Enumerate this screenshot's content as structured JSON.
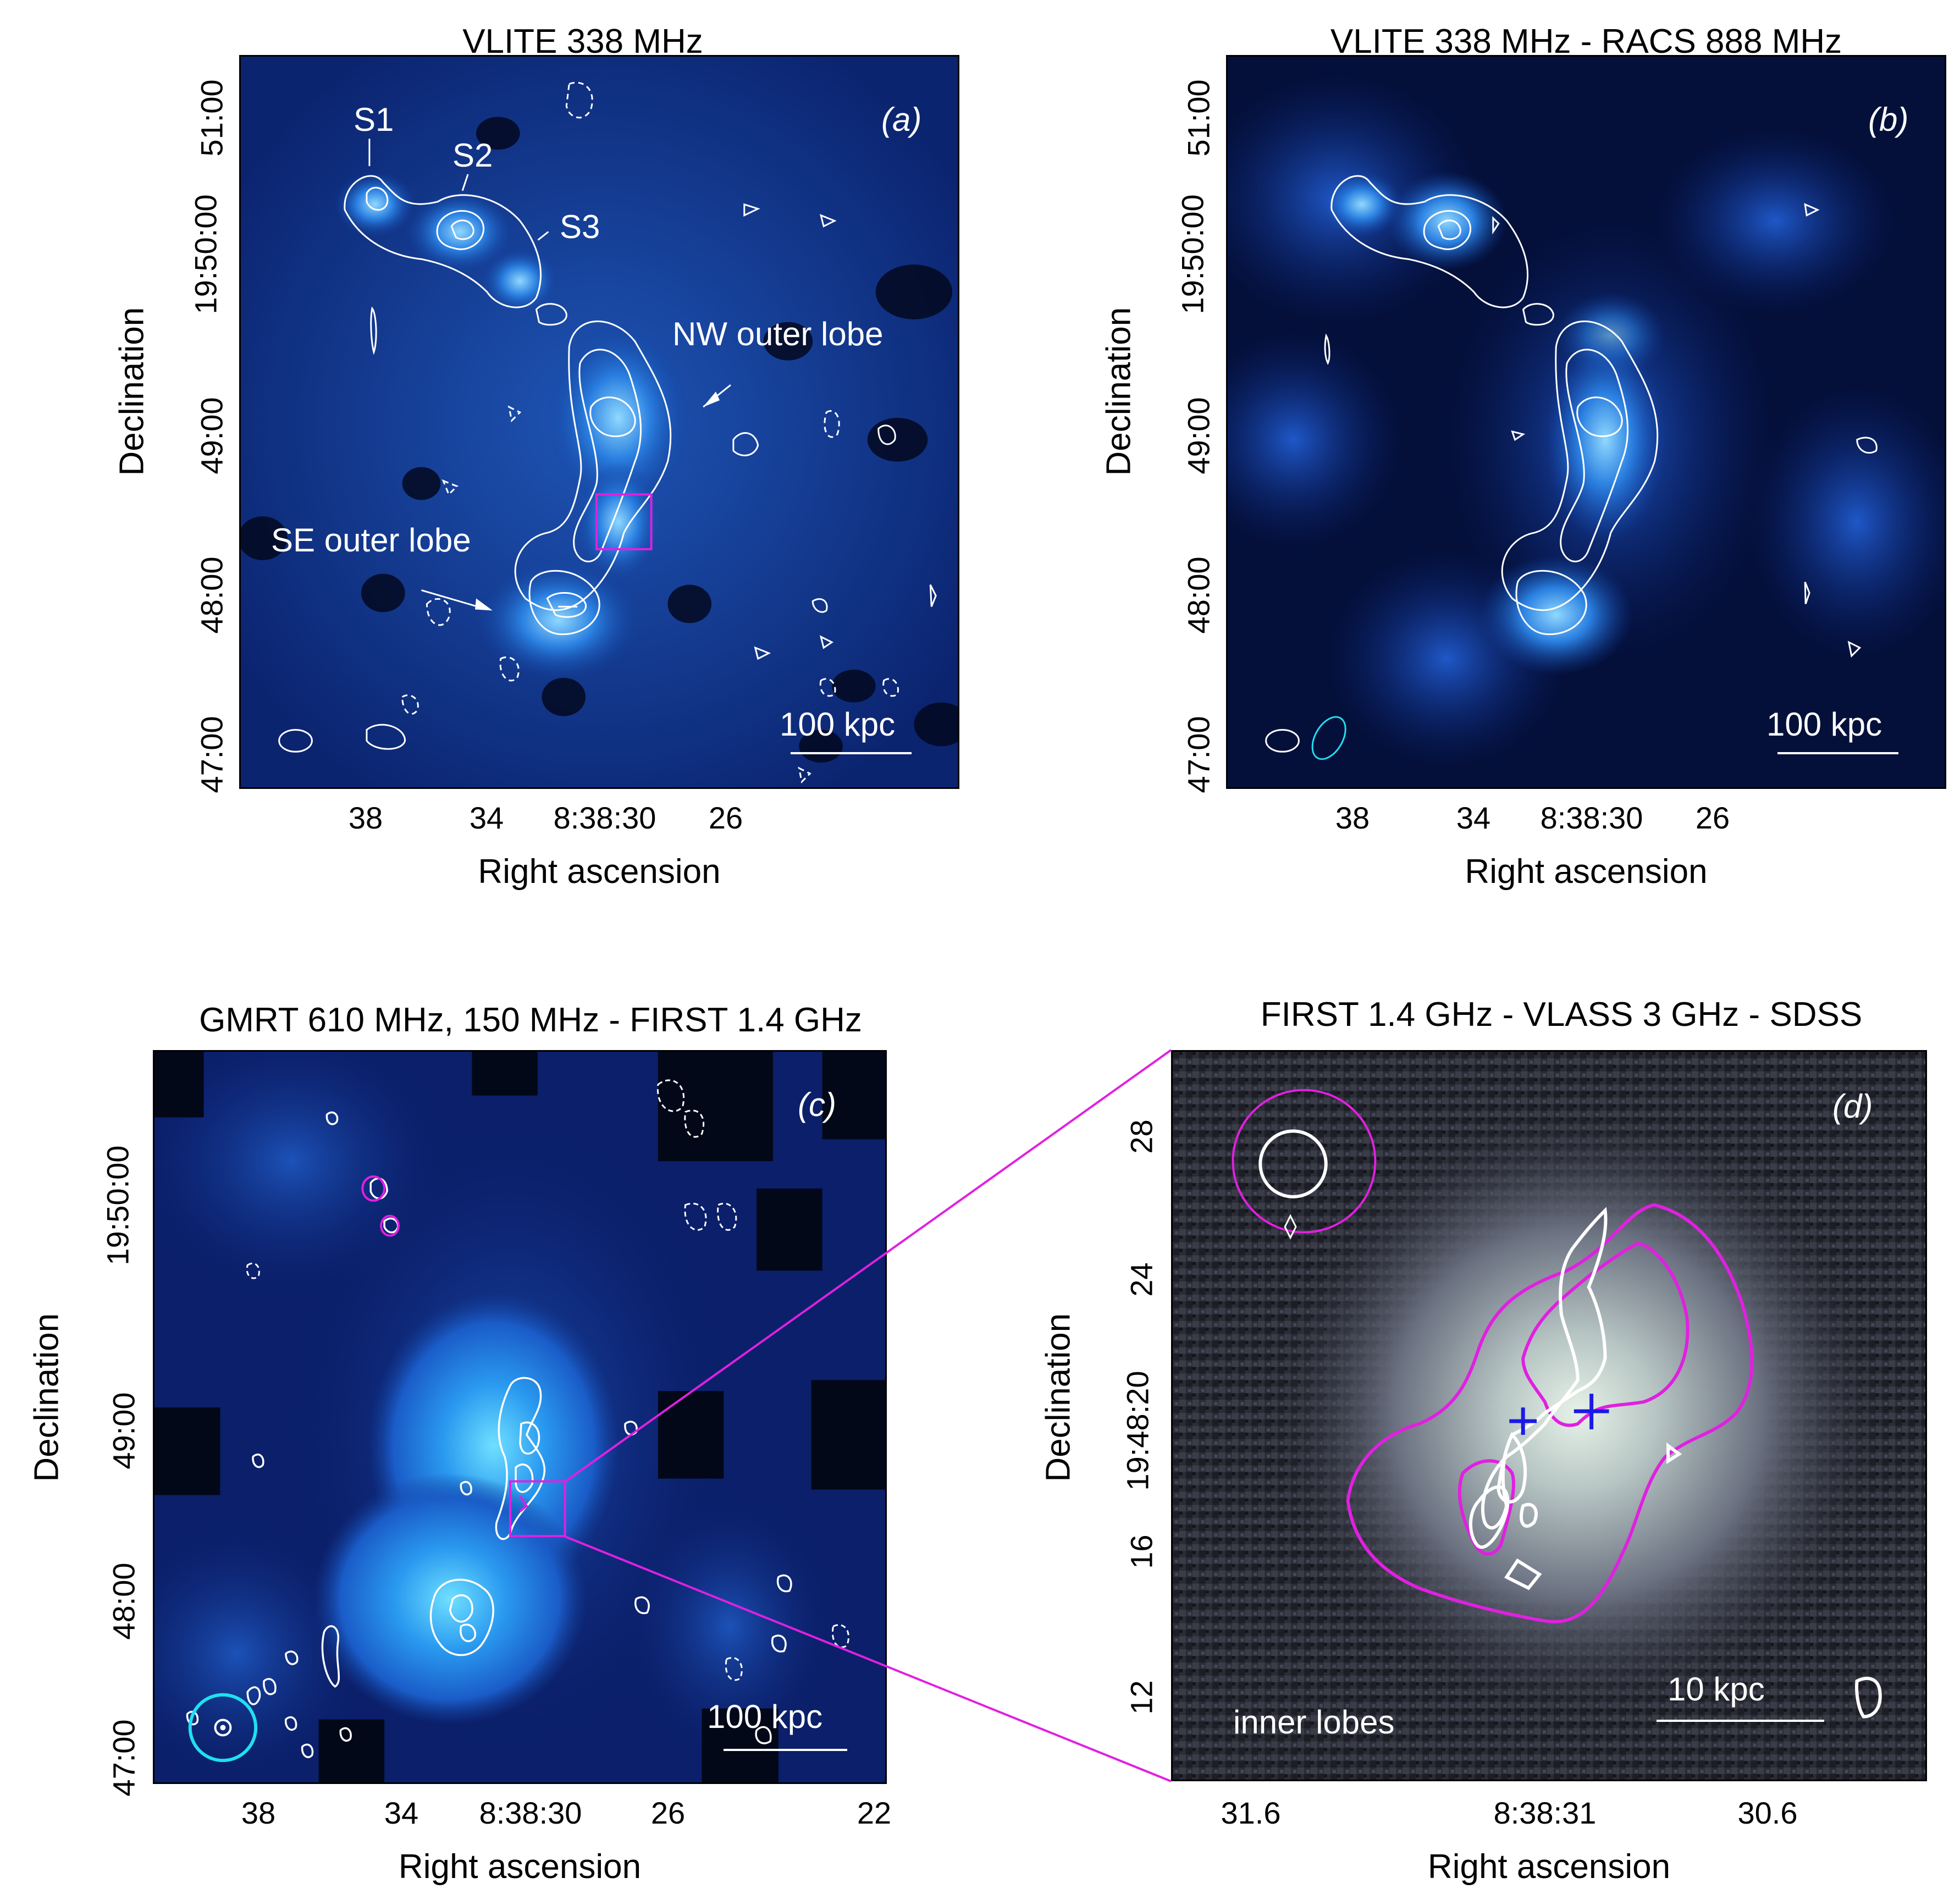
{
  "panels": {
    "a": {
      "title": "VLITE 338 MHz",
      "letter": "(a)",
      "xlabel": "Right ascension",
      "ylabel": "Declination",
      "xticks": [
        "38",
        "34",
        "8:38:30",
        "26"
      ],
      "yticks": [
        "51:00",
        "19:50:00",
        "49:00",
        "48:00",
        "47:00"
      ],
      "scale": "100 kpc",
      "sources": [
        "S1",
        "S2",
        "S3"
      ],
      "lobes": [
        "NW outer lobe",
        "SE outer lobe"
      ]
    },
    "b": {
      "title": "VLITE 338 MHz - RACS 888 MHz",
      "letter": "(b)",
      "xlabel": "Right ascension",
      "ylabel": "Declination",
      "xticks": [
        "38",
        "34",
        "8:38:30",
        "26"
      ],
      "yticks": [
        "51:00",
        "19:50:00",
        "49:00",
        "48:00",
        "47:00"
      ],
      "scale": "100 kpc"
    },
    "c": {
      "title": "GMRT 610 MHz, 150 MHz - FIRST 1.4 GHz",
      "letter": "(c)",
      "xlabel": "Right ascension",
      "ylabel": "Declination",
      "xticks": [
        "38",
        "34",
        "8:38:30",
        "26",
        "22"
      ],
      "yticks": [
        "19:50:00",
        "49:00",
        "48:00",
        "47:00"
      ],
      "scale": "100 kpc"
    },
    "d": {
      "title": "FIRST 1.4 GHz - VLASS 3 GHz - SDSS",
      "letter": "(d)",
      "xlabel": "Right ascension",
      "ylabel": "Declination",
      "xticks": [
        "31.6",
        "8:38:31",
        "30.6"
      ],
      "yticks": [
        "28",
        "24",
        "19:48:20",
        "16",
        "12"
      ],
      "scale": "10 kpc",
      "note": "inner lobes"
    }
  },
  "colors": {
    "magenta": "#e020e0",
    "cyan": "#20e0f0",
    "contour": "#ffffff",
    "cross": "#1a1ae6"
  }
}
